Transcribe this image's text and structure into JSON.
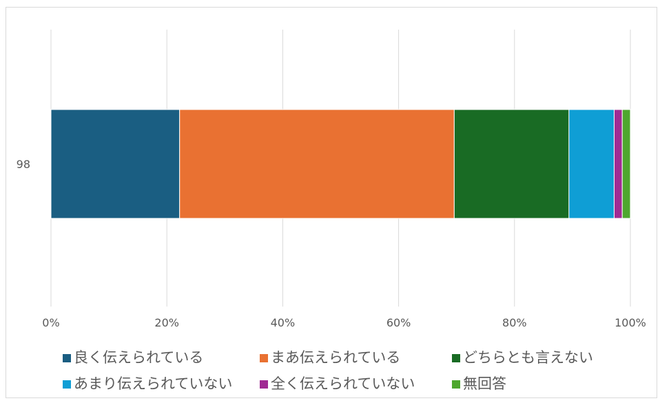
{
  "chart_data": {
    "type": "bar",
    "orientation": "horizontal",
    "stacked": "percent",
    "categories": [
      "98"
    ],
    "series": [
      {
        "name": "良く伝えられている",
        "values": [
          22.2
        ],
        "color": "#1a5e82"
      },
      {
        "name": "まあ伝えられている",
        "values": [
          47.4
        ],
        "color": "#e97132"
      },
      {
        "name": "どちらとも言えない",
        "values": [
          19.8
        ],
        "color": "#196b24"
      },
      {
        "name": "あまり伝えられていない",
        "values": [
          7.8
        ],
        "color": "#0f9ed5"
      },
      {
        "name": "全く伝えられていない",
        "values": [
          1.4
        ],
        "color": "#a02b93"
      },
      {
        "name": "無回答",
        "values": [
          1.4
        ],
        "color": "#4ea72e"
      }
    ],
    "xlim": [
      0,
      100
    ],
    "xticks": [
      "0%",
      "20%",
      "40%",
      "60%",
      "80%",
      "100%"
    ],
    "grid": true,
    "legend_position": "bottom"
  }
}
